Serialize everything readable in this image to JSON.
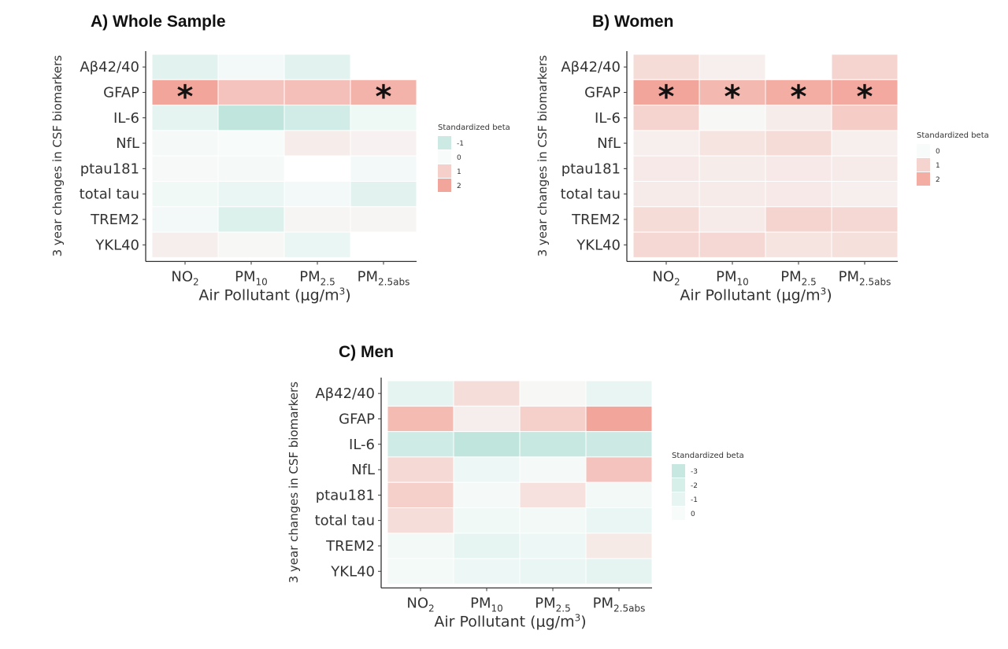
{
  "axis_title": {
    "x_main": "Air Pollutant (μg/m",
    "x_sup": "3",
    "x_close": ")",
    "y": "3 year changes in CSF biomarkers"
  },
  "colors": {
    "negative": "#b7e2d8",
    "zero": "#f7fbfa",
    "positive": "#f29d92"
  },
  "chart_data": [
    {
      "type": "heatmap",
      "title": "A) Whole Sample",
      "rows": [
        "Aβ42/40",
        "GFAP",
        "IL-6",
        "NfL",
        "ptau181",
        "total tau",
        "TREM2",
        "YKL40"
      ],
      "columns": [
        {
          "base": "NO",
          "sub": "2"
        },
        {
          "base": "PM",
          "sub": "10"
        },
        {
          "base": "PM",
          "sub": "2.5"
        },
        {
          "base": "PM",
          "sub": "2.5abs"
        }
      ],
      "values": [
        [
          -0.5,
          -0.1,
          -0.5,
          null
        ],
        [
          2.0,
          1.3,
          1.4,
          1.7
        ],
        [
          -0.4,
          -1.3,
          -0.9,
          -0.2
        ],
        [
          -0.05,
          0.0,
          0.35,
          0.2
        ],
        [
          0.05,
          -0.05,
          null,
          -0.1
        ],
        [
          -0.15,
          -0.3,
          -0.1,
          -0.5
        ],
        [
          -0.1,
          -0.6,
          0.15,
          0.15
        ],
        [
          0.3,
          0.1,
          -0.3,
          null
        ]
      ],
      "significant": [
        [
          1,
          0
        ],
        [
          1,
          3
        ]
      ],
      "legend": {
        "title": "Standardized beta",
        "labels": [
          "-1",
          "0",
          "1",
          "2"
        ],
        "values": [
          -1,
          0,
          1,
          2
        ]
      },
      "range": [
        -1.5,
        2.2
      ]
    },
    {
      "type": "heatmap",
      "title": "B) Women",
      "rows": [
        "Aβ42/40",
        "GFAP",
        "IL-6",
        "NfL",
        "ptau181",
        "total tau",
        "TREM2",
        "YKL40"
      ],
      "columns": [
        {
          "base": "NO",
          "sub": "2"
        },
        {
          "base": "PM",
          "sub": "10"
        },
        {
          "base": "PM",
          "sub": "2.5"
        },
        {
          "base": "PM",
          "sub": "2.5abs"
        }
      ],
      "values": [
        [
          0.8,
          0.3,
          null,
          1.0
        ],
        [
          2.2,
          1.7,
          2.0,
          2.1
        ],
        [
          1.0,
          0.1,
          0.35,
          1.2
        ],
        [
          0.3,
          0.6,
          0.8,
          0.3
        ],
        [
          0.45,
          0.35,
          0.45,
          0.4
        ],
        [
          0.4,
          0.4,
          0.45,
          0.3
        ],
        [
          0.8,
          0.4,
          1.0,
          0.9
        ],
        [
          0.9,
          0.9,
          0.6,
          0.7
        ]
      ],
      "significant": [
        [
          1,
          0
        ],
        [
          1,
          1
        ],
        [
          1,
          2
        ],
        [
          1,
          3
        ]
      ],
      "legend": {
        "title": "Standardized beta",
        "labels": [
          "0",
          "1",
          "2"
        ],
        "values": [
          0,
          1,
          2
        ]
      },
      "range": [
        0,
        2.4
      ]
    },
    {
      "type": "heatmap",
      "title": "C) Men",
      "rows": [
        "Aβ42/40",
        "GFAP",
        "IL-6",
        "NfL",
        "ptau181",
        "total tau",
        "TREM2",
        "YKL40"
      ],
      "columns": [
        {
          "base": "NO",
          "sub": "2"
        },
        {
          "base": "PM",
          "sub": "10"
        },
        {
          "base": "PM",
          "sub": "2.5"
        },
        {
          "base": "PM",
          "sub": "2.5abs"
        }
      ],
      "values": [
        [
          -1.1,
          0.7,
          0.1,
          -0.9
        ],
        [
          1.5,
          0.3,
          1.0,
          2.0
        ],
        [
          -2.5,
          -3.5,
          -3.0,
          -2.7
        ],
        [
          0.8,
          -0.6,
          -0.1,
          1.3
        ],
        [
          1.0,
          -0.1,
          0.6,
          -0.3
        ],
        [
          0.7,
          -0.4,
          -0.3,
          -0.8
        ],
        [
          -0.3,
          -1.0,
          -0.6,
          0.4
        ],
        [
          -0.2,
          -0.6,
          -0.8,
          -1.1
        ]
      ],
      "significant": [],
      "legend": {
        "title": "Standardized beta",
        "labels": [
          "-3",
          "-2",
          "-1",
          "0"
        ],
        "values": [
          -3,
          -2,
          -1,
          0
        ]
      },
      "range": [
        -4,
        2.2
      ]
    }
  ]
}
